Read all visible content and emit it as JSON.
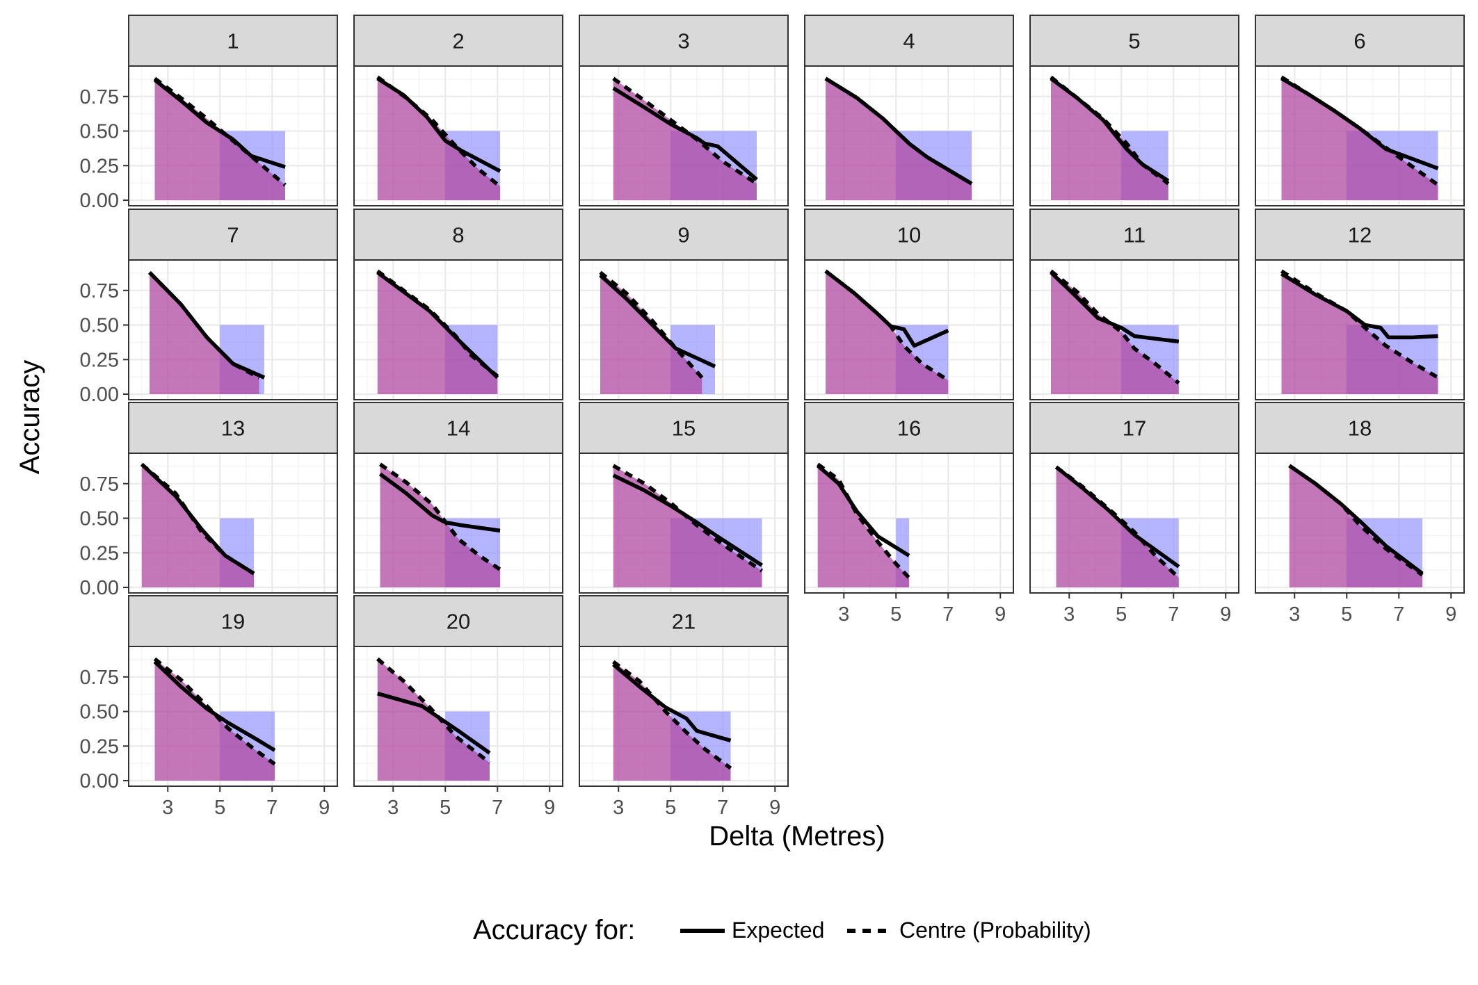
{
  "chart_data": {
    "type": "line",
    "xlabel": "Delta (Metres)",
    "ylabel": "Accuracy",
    "x_ticks": [
      3,
      5,
      7,
      9
    ],
    "y_ticks": [
      "0.00",
      "0.25",
      "0.50",
      "0.75"
    ],
    "xlim": [
      1.5,
      9.5
    ],
    "ylim": [
      -0.04,
      0.97
    ],
    "grid": true,
    "legend": {
      "title": "Accuracy for:",
      "position": "bottom",
      "entries": [
        {
          "label": "Expected",
          "linetype": "solid"
        },
        {
          "label": "Centre (Probability)",
          "linetype": "dashed"
        }
      ]
    },
    "colors": {
      "area_purple": "#b04aa0",
      "area_blue": "#8c8cff",
      "strip_fill": "#d9d9d9",
      "line": "#000000",
      "grid": "#ebebeb",
      "border": "#333333"
    },
    "area_note_values": {
      "blue_rect_top": 0.5,
      "blue_rect_start": 5.0
    },
    "panels": [
      {
        "id": "1",
        "xmin": 2.5,
        "xmax": 7.5,
        "expected": [
          [
            2.5,
            0.87
          ],
          [
            3.5,
            0.72
          ],
          [
            4.5,
            0.56
          ],
          [
            5.5,
            0.44
          ],
          [
            6.2,
            0.32
          ],
          [
            7.5,
            0.24
          ]
        ],
        "centre": [
          [
            2.5,
            0.88
          ],
          [
            3.5,
            0.74
          ],
          [
            4.5,
            0.59
          ],
          [
            5.5,
            0.43
          ],
          [
            6.5,
            0.27
          ],
          [
            7.5,
            0.11
          ]
        ]
      },
      {
        "id": "2",
        "xmin": 2.4,
        "xmax": 7.1,
        "expected": [
          [
            2.4,
            0.88
          ],
          [
            3.4,
            0.76
          ],
          [
            4.3,
            0.6
          ],
          [
            5.0,
            0.43
          ],
          [
            5.6,
            0.36
          ],
          [
            7.1,
            0.21
          ]
        ],
        "centre": [
          [
            2.4,
            0.89
          ],
          [
            3.5,
            0.74
          ],
          [
            4.5,
            0.58
          ],
          [
            5.5,
            0.37
          ],
          [
            6.3,
            0.22
          ],
          [
            7.1,
            0.1
          ]
        ]
      },
      {
        "id": "3",
        "xmin": 2.8,
        "xmax": 8.3,
        "expected": [
          [
            2.8,
            0.81
          ],
          [
            4.0,
            0.67
          ],
          [
            5.0,
            0.55
          ],
          [
            6.0,
            0.45
          ],
          [
            6.3,
            0.41
          ],
          [
            6.8,
            0.39
          ],
          [
            8.3,
            0.15
          ]
        ],
        "centre": [
          [
            2.8,
            0.88
          ],
          [
            4.0,
            0.72
          ],
          [
            5.0,
            0.58
          ],
          [
            6.0,
            0.44
          ],
          [
            7.0,
            0.28
          ],
          [
            8.3,
            0.12
          ]
        ]
      },
      {
        "id": "4",
        "xmin": 2.3,
        "xmax": 7.9,
        "expected": [
          [
            2.3,
            0.88
          ],
          [
            3.5,
            0.74
          ],
          [
            4.5,
            0.59
          ],
          [
            5.5,
            0.41
          ],
          [
            6.2,
            0.31
          ],
          [
            7.9,
            0.12
          ]
        ],
        "centre": [
          [
            2.3,
            0.88
          ],
          [
            3.5,
            0.74
          ],
          [
            4.5,
            0.59
          ],
          [
            5.5,
            0.41
          ],
          [
            6.2,
            0.31
          ],
          [
            7.9,
            0.12
          ]
        ]
      },
      {
        "id": "5",
        "xmin": 2.3,
        "xmax": 6.8,
        "expected": [
          [
            2.3,
            0.88
          ],
          [
            3.3,
            0.74
          ],
          [
            4.3,
            0.58
          ],
          [
            5.2,
            0.37
          ],
          [
            5.8,
            0.26
          ],
          [
            6.8,
            0.14
          ]
        ],
        "centre": [
          [
            2.3,
            0.89
          ],
          [
            3.3,
            0.74
          ],
          [
            4.3,
            0.59
          ],
          [
            5.2,
            0.41
          ],
          [
            5.8,
            0.26
          ],
          [
            6.8,
            0.12
          ]
        ]
      },
      {
        "id": "6",
        "xmin": 2.5,
        "xmax": 8.5,
        "expected": [
          [
            2.5,
            0.88
          ],
          [
            3.5,
            0.77
          ],
          [
            4.5,
            0.65
          ],
          [
            5.5,
            0.52
          ],
          [
            6.5,
            0.37
          ],
          [
            8.5,
            0.23
          ]
        ],
        "centre": [
          [
            2.5,
            0.89
          ],
          [
            3.5,
            0.77
          ],
          [
            4.5,
            0.65
          ],
          [
            5.5,
            0.52
          ],
          [
            6.5,
            0.38
          ],
          [
            8.5,
            0.11
          ]
        ]
      },
      {
        "id": "7",
        "xmin": 2.3,
        "xmax": 6.7,
        "expected": [
          [
            2.3,
            0.88
          ],
          [
            3.5,
            0.65
          ],
          [
            4.5,
            0.41
          ],
          [
            5.5,
            0.22
          ],
          [
            6.7,
            0.12
          ]
        ],
        "centre": [
          [
            2.3,
            0.88
          ],
          [
            3.5,
            0.65
          ],
          [
            4.5,
            0.41
          ],
          [
            5.5,
            0.22
          ],
          [
            6.5,
            0.12
          ]
        ]
      },
      {
        "id": "8",
        "xmin": 2.4,
        "xmax": 7.0,
        "expected": [
          [
            2.4,
            0.88
          ],
          [
            3.4,
            0.74
          ],
          [
            4.4,
            0.6
          ],
          [
            5.4,
            0.41
          ],
          [
            6.0,
            0.3
          ],
          [
            7.0,
            0.12
          ]
        ],
        "centre": [
          [
            2.4,
            0.89
          ],
          [
            3.4,
            0.75
          ],
          [
            4.4,
            0.61
          ],
          [
            5.4,
            0.42
          ],
          [
            6.0,
            0.28
          ],
          [
            7.0,
            0.13
          ]
        ]
      },
      {
        "id": "9",
        "xmin": 2.3,
        "xmax": 6.7,
        "expected": [
          [
            2.3,
            0.86
          ],
          [
            3.3,
            0.69
          ],
          [
            4.3,
            0.5
          ],
          [
            5.2,
            0.33
          ],
          [
            6.7,
            0.2
          ]
        ],
        "centre": [
          [
            2.3,
            0.88
          ],
          [
            3.3,
            0.73
          ],
          [
            4.3,
            0.53
          ],
          [
            5.2,
            0.33
          ],
          [
            6.2,
            0.12
          ]
        ]
      },
      {
        "id": "10",
        "xmin": 2.3,
        "xmax": 7.0,
        "expected": [
          [
            2.3,
            0.89
          ],
          [
            3.4,
            0.73
          ],
          [
            4.3,
            0.58
          ],
          [
            4.8,
            0.49
          ],
          [
            5.3,
            0.47
          ],
          [
            5.7,
            0.35
          ],
          [
            7.0,
            0.46
          ]
        ],
        "centre": [
          [
            2.3,
            0.89
          ],
          [
            3.4,
            0.73
          ],
          [
            4.3,
            0.58
          ],
          [
            4.8,
            0.49
          ],
          [
            5.3,
            0.35
          ],
          [
            6.0,
            0.22
          ],
          [
            7.0,
            0.1
          ]
        ]
      },
      {
        "id": "11",
        "xmin": 2.3,
        "xmax": 7.2,
        "expected": [
          [
            2.3,
            0.88
          ],
          [
            3.3,
            0.7
          ],
          [
            4.1,
            0.55
          ],
          [
            5.0,
            0.48
          ],
          [
            5.5,
            0.42
          ],
          [
            7.2,
            0.38
          ]
        ],
        "centre": [
          [
            2.3,
            0.89
          ],
          [
            3.3,
            0.74
          ],
          [
            4.1,
            0.58
          ],
          [
            5.0,
            0.45
          ],
          [
            5.5,
            0.33
          ],
          [
            6.3,
            0.22
          ],
          [
            7.2,
            0.08
          ]
        ]
      },
      {
        "id": "12",
        "xmin": 2.5,
        "xmax": 8.5,
        "expected": [
          [
            2.5,
            0.87
          ],
          [
            3.8,
            0.72
          ],
          [
            5.0,
            0.6
          ],
          [
            5.7,
            0.5
          ],
          [
            6.3,
            0.48
          ],
          [
            6.6,
            0.41
          ],
          [
            7.5,
            0.41
          ],
          [
            8.5,
            0.42
          ]
        ],
        "centre": [
          [
            2.5,
            0.89
          ],
          [
            3.8,
            0.73
          ],
          [
            5.0,
            0.6
          ],
          [
            5.7,
            0.48
          ],
          [
            6.5,
            0.35
          ],
          [
            7.5,
            0.23
          ],
          [
            8.5,
            0.12
          ]
        ]
      },
      {
        "id": "13",
        "xmin": 2.0,
        "xmax": 6.3,
        "expected": [
          [
            2.0,
            0.89
          ],
          [
            3.3,
            0.66
          ],
          [
            4.3,
            0.42
          ],
          [
            5.2,
            0.23
          ],
          [
            6.3,
            0.1
          ]
        ],
        "centre": [
          [
            2.0,
            0.89
          ],
          [
            3.3,
            0.68
          ],
          [
            4.3,
            0.4
          ],
          [
            5.2,
            0.23
          ],
          [
            6.3,
            0.1
          ]
        ]
      },
      {
        "id": "14",
        "xmin": 2.5,
        "xmax": 7.1,
        "expected": [
          [
            2.5,
            0.82
          ],
          [
            3.5,
            0.68
          ],
          [
            4.5,
            0.52
          ],
          [
            5.0,
            0.47
          ],
          [
            5.6,
            0.45
          ],
          [
            7.1,
            0.41
          ]
        ],
        "centre": [
          [
            2.5,
            0.89
          ],
          [
            3.5,
            0.76
          ],
          [
            4.5,
            0.6
          ],
          [
            5.5,
            0.35
          ],
          [
            6.3,
            0.23
          ],
          [
            7.1,
            0.13
          ]
        ]
      },
      {
        "id": "15",
        "xmin": 2.8,
        "xmax": 8.5,
        "expected": [
          [
            2.8,
            0.81
          ],
          [
            4.0,
            0.7
          ],
          [
            5.0,
            0.59
          ],
          [
            6.0,
            0.47
          ],
          [
            6.7,
            0.38
          ],
          [
            8.5,
            0.16
          ]
        ],
        "centre": [
          [
            2.8,
            0.88
          ],
          [
            4.0,
            0.75
          ],
          [
            5.0,
            0.61
          ],
          [
            6.0,
            0.45
          ],
          [
            7.0,
            0.31
          ],
          [
            8.5,
            0.12
          ]
        ]
      },
      {
        "id": "16",
        "xmin": 2.0,
        "xmax": 5.5,
        "expected": [
          [
            2.0,
            0.88
          ],
          [
            2.8,
            0.75
          ],
          [
            3.5,
            0.55
          ],
          [
            4.3,
            0.37
          ],
          [
            5.5,
            0.23
          ]
        ],
        "centre": [
          [
            2.0,
            0.89
          ],
          [
            2.8,
            0.78
          ],
          [
            3.5,
            0.53
          ],
          [
            4.3,
            0.33
          ],
          [
            5.0,
            0.17
          ],
          [
            5.5,
            0.07
          ]
        ]
      },
      {
        "id": "17",
        "xmin": 2.5,
        "xmax": 7.2,
        "expected": [
          [
            2.5,
            0.87
          ],
          [
            3.5,
            0.72
          ],
          [
            4.5,
            0.56
          ],
          [
            5.5,
            0.38
          ],
          [
            7.2,
            0.15
          ]
        ],
        "centre": [
          [
            2.5,
            0.87
          ],
          [
            3.5,
            0.73
          ],
          [
            4.5,
            0.57
          ],
          [
            5.5,
            0.4
          ],
          [
            6.3,
            0.23
          ],
          [
            7.2,
            0.07
          ]
        ]
      },
      {
        "id": "18",
        "xmin": 2.8,
        "xmax": 7.9,
        "expected": [
          [
            2.8,
            0.88
          ],
          [
            3.8,
            0.75
          ],
          [
            4.8,
            0.6
          ],
          [
            5.5,
            0.48
          ],
          [
            6.5,
            0.3
          ],
          [
            7.9,
            0.1
          ]
        ],
        "centre": [
          [
            2.8,
            0.88
          ],
          [
            3.8,
            0.75
          ],
          [
            4.8,
            0.6
          ],
          [
            5.5,
            0.45
          ],
          [
            6.5,
            0.28
          ],
          [
            7.9,
            0.09
          ]
        ]
      },
      {
        "id": "19",
        "xmin": 2.5,
        "xmax": 7.1,
        "expected": [
          [
            2.5,
            0.86
          ],
          [
            3.5,
            0.68
          ],
          [
            4.5,
            0.52
          ],
          [
            5.3,
            0.42
          ],
          [
            6.3,
            0.31
          ],
          [
            7.1,
            0.22
          ]
        ],
        "centre": [
          [
            2.5,
            0.88
          ],
          [
            3.5,
            0.73
          ],
          [
            4.5,
            0.54
          ],
          [
            5.3,
            0.38
          ],
          [
            6.3,
            0.23
          ],
          [
            7.1,
            0.12
          ]
        ]
      },
      {
        "id": "20",
        "xmin": 2.4,
        "xmax": 6.7,
        "expected": [
          [
            2.4,
            0.63
          ],
          [
            4.1,
            0.54
          ],
          [
            5.5,
            0.36
          ],
          [
            6.7,
            0.2
          ]
        ],
        "centre": [
          [
            2.4,
            0.88
          ],
          [
            3.4,
            0.72
          ],
          [
            4.4,
            0.53
          ],
          [
            5.4,
            0.32
          ],
          [
            6.7,
            0.13
          ]
        ]
      },
      {
        "id": "21",
        "xmin": 2.8,
        "xmax": 7.3,
        "expected": [
          [
            2.8,
            0.84
          ],
          [
            3.8,
            0.68
          ],
          [
            4.8,
            0.53
          ],
          [
            5.6,
            0.45
          ],
          [
            6.0,
            0.36
          ],
          [
            7.3,
            0.29
          ]
        ],
        "centre": [
          [
            2.8,
            0.86
          ],
          [
            3.8,
            0.72
          ],
          [
            4.8,
            0.5
          ],
          [
            5.6,
            0.35
          ],
          [
            6.3,
            0.23
          ],
          [
            7.3,
            0.09
          ]
        ]
      }
    ]
  }
}
